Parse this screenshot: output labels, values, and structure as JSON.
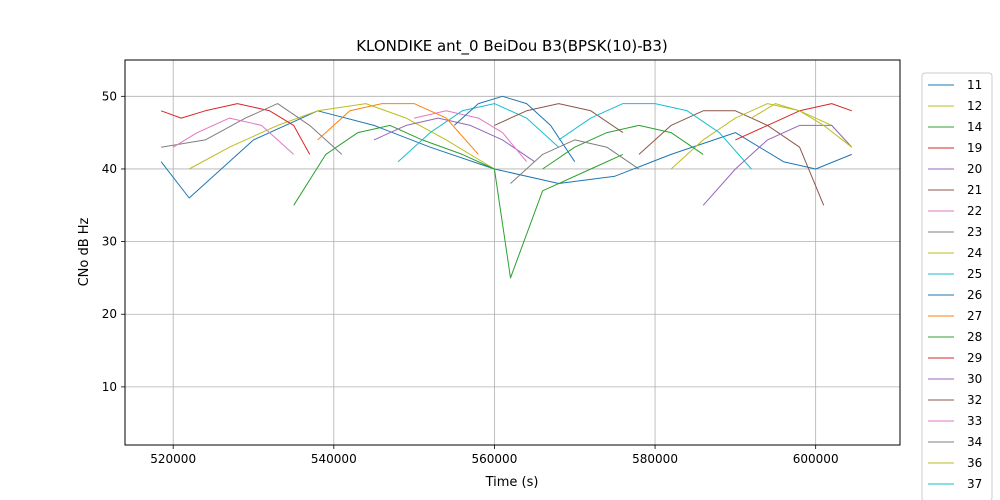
{
  "chart_data": {
    "type": "line",
    "title": "KLONDIKE ant_0 BeiDou B3(BPSK(10)-B3)",
    "xlabel": "Time (s)",
    "ylabel": "CNo dB Hz",
    "xlim": [
      514000,
      610500
    ],
    "ylim": [
      2,
      55
    ],
    "xticks": [
      520000,
      540000,
      560000,
      580000,
      600000
    ],
    "yticks": [
      10,
      20,
      30,
      40,
      50
    ],
    "xtick_labels": [
      "520000",
      "540000",
      "560000",
      "580000",
      "600000"
    ],
    "ytick_labels": [
      "10",
      "20",
      "30",
      "40",
      "50"
    ],
    "grid": true,
    "legend_position": "right (outside plot)",
    "series": [
      {
        "name": "11",
        "color": "#1f77b4",
        "x": [
          518500,
          522000,
          530000,
          538000,
          545000,
          552000,
          560000,
          568000,
          575000,
          582000,
          590000,
          596000,
          600000,
          604500
        ],
        "y": [
          41,
          36,
          44,
          48,
          46,
          43,
          40,
          38,
          39,
          42,
          45,
          41,
          40,
          42
        ]
      },
      {
        "name": "12",
        "color": "#bcbd22",
        "x": [
          522000,
          527000,
          533000,
          538000,
          544000,
          549000,
          554000,
          560000
        ],
        "y": [
          40,
          43,
          46,
          48,
          49,
          47,
          44,
          40
        ]
      },
      {
        "name": "14",
        "color": "#2ca02c",
        "x": [
          535000,
          539000,
          543000,
          547000,
          551000,
          556000,
          560000,
          562000,
          566000,
          572000,
          576000
        ],
        "y": [
          35,
          42,
          45,
          46,
          44,
          42,
          40,
          25,
          37,
          40,
          42
        ]
      },
      {
        "name": "19",
        "color": "#d62728",
        "x": [
          518500,
          521000,
          524000,
          528000,
          532000,
          535000,
          537000
        ],
        "y": [
          48,
          47,
          48,
          49,
          48,
          46,
          42
        ]
      },
      {
        "name": "20",
        "color": "#9467bd",
        "x": [
          545000,
          549000,
          553000,
          557000,
          561000,
          565000
        ],
        "y": [
          44,
          46,
          47,
          46,
          44,
          41
        ]
      },
      {
        "name": "21",
        "color": "#8c564b",
        "x": [
          578000,
          582000,
          586000,
          590000,
          594000,
          598000,
          601000
        ],
        "y": [
          42,
          46,
          48,
          48,
          46,
          43,
          35
        ]
      },
      {
        "name": "22",
        "color": "#e377c2",
        "x": [
          550000,
          554000,
          558000,
          561000,
          564000
        ],
        "y": [
          47,
          48,
          47,
          45,
          41
        ]
      },
      {
        "name": "23",
        "color": "#7f7f7f",
        "x": [
          518500,
          524000,
          529000,
          533000,
          537000,
          541000
        ],
        "y": [
          43,
          44,
          47,
          49,
          46,
          42
        ]
      },
      {
        "name": "24",
        "color": "#bcbd22",
        "x": [
          582000,
          586000,
          590000,
          594000,
          598000,
          602000,
          604500
        ],
        "y": [
          40,
          44,
          47,
          49,
          48,
          46,
          43
        ]
      },
      {
        "name": "25",
        "color": "#17becf",
        "x": [
          548000,
          552000,
          556000,
          560000,
          564000,
          568000
        ],
        "y": [
          41,
          45,
          48,
          49,
          47,
          43
        ]
      },
      {
        "name": "26",
        "color": "#1f77b4",
        "x": [
          555000,
          558000,
          561000,
          564000,
          567000,
          570000
        ],
        "y": [
          46,
          49,
          50,
          49,
          46,
          41
        ]
      },
      {
        "name": "27",
        "color": "#ff7f0e",
        "x": [
          538000,
          542000,
          546000,
          550000,
          554000,
          558000
        ],
        "y": [
          44,
          48,
          49,
          49,
          47,
          42
        ]
      },
      {
        "name": "28",
        "color": "#2ca02c",
        "x": [
          566000,
          570000,
          574000,
          578000,
          582000,
          586000
        ],
        "y": [
          40,
          43,
          45,
          46,
          45,
          42
        ]
      },
      {
        "name": "29",
        "color": "#d62728",
        "x": [
          590000,
          594000,
          598000,
          602000,
          604500
        ],
        "y": [
          44,
          46,
          48,
          49,
          48
        ]
      },
      {
        "name": "30",
        "color": "#9467bd",
        "x": [
          586000,
          590000,
          594000,
          598000,
          602000,
          604500
        ],
        "y": [
          35,
          40,
          44,
          46,
          46,
          43
        ]
      },
      {
        "name": "32",
        "color": "#8c564b",
        "x": [
          560000,
          564000,
          568000,
          572000,
          576000
        ],
        "y": [
          46,
          48,
          49,
          48,
          45
        ]
      },
      {
        "name": "33",
        "color": "#e377c2",
        "x": [
          520000,
          523000,
          527000,
          531000,
          535000
        ],
        "y": [
          43,
          45,
          47,
          46,
          42
        ]
      },
      {
        "name": "34",
        "color": "#7f7f7f",
        "x": [
          562000,
          566000,
          570000,
          574000,
          578000
        ],
        "y": [
          38,
          42,
          44,
          43,
          40
        ]
      },
      {
        "name": "36",
        "color": "#bcbd22",
        "x": [
          592000,
          595000,
          598000,
          601000,
          604500
        ],
        "y": [
          47,
          49,
          48,
          46,
          43
        ]
      },
      {
        "name": "37",
        "color": "#17becf",
        "x": [
          568000,
          572000,
          576000,
          580000,
          584000,
          588000,
          592000
        ],
        "y": [
          44,
          47,
          49,
          49,
          48,
          45,
          40
        ]
      }
    ]
  }
}
